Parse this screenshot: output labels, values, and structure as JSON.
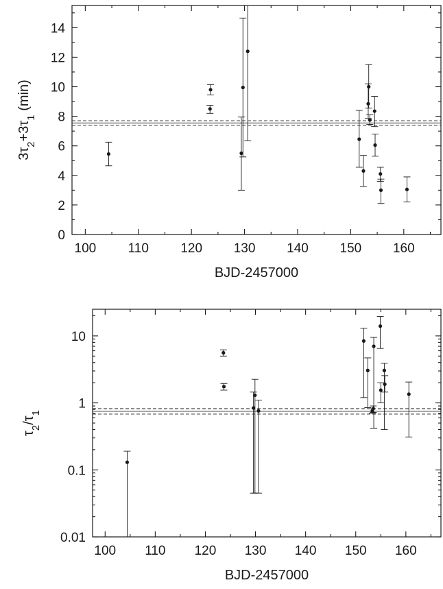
{
  "chart_data": [
    {
      "type": "scatter",
      "xlabel": "BJD-2457000",
      "ylabel_parts": [
        "3τ",
        "2",
        "+3τ",
        "1",
        " (min)"
      ],
      "xlim": [
        97.5,
        167
      ],
      "ylim": [
        0,
        15.5
      ],
      "yscale": "linear",
      "xticks": [
        100,
        110,
        120,
        130,
        140,
        150,
        160
      ],
      "yticks": [
        0,
        2,
        4,
        6,
        8,
        10,
        12,
        14
      ],
      "ytick_labels": [
        "0",
        "2",
        "4",
        "6",
        "8",
        "10",
        "12",
        "14"
      ],
      "grid": false,
      "ref_lines": [
        {
          "y": 7.55,
          "style": "solid"
        },
        {
          "y": 7.4,
          "style": "dashed"
        },
        {
          "y": 7.7,
          "style": "dashed"
        }
      ],
      "points": [
        {
          "x": 104.4,
          "y": 5.45,
          "ylo": 4.65,
          "yhi": 6.25
        },
        {
          "x": 123.5,
          "y": 8.5,
          "ylo": 8.2,
          "yhi": 8.75
        },
        {
          "x": 123.6,
          "y": 9.8,
          "ylo": 9.45,
          "yhi": 10.15
        },
        {
          "x": 129.4,
          "y": 5.5,
          "ylo": 3.0,
          "yhi": 7.95
        },
        {
          "x": 129.7,
          "y": 9.95,
          "ylo": 5.25,
          "yhi": 14.65
        },
        {
          "x": 130.6,
          "y": 12.4,
          "ylo": 6.35,
          "yhi": 15.5
        },
        {
          "x": 151.6,
          "y": 6.45,
          "ylo": 4.55,
          "yhi": 8.4
        },
        {
          "x": 152.4,
          "y": 4.3,
          "ylo": 3.25,
          "yhi": 5.35
        },
        {
          "x": 153.3,
          "y": 8.85,
          "ylo": 7.85,
          "yhi": 10.2
        },
        {
          "x": 153.4,
          "y": 10.0,
          "ylo": 8.55,
          "yhi": 11.5
        },
        {
          "x": 153.6,
          "y": 7.75,
          "ylo": 7.45,
          "yhi": 8.1
        },
        {
          "x": 154.5,
          "y": 8.35,
          "ylo": 7.3,
          "yhi": 9.35
        },
        {
          "x": 154.6,
          "y": 6.05,
          "ylo": 5.3,
          "yhi": 6.8
        },
        {
          "x": 155.6,
          "y": 4.1,
          "ylo": 3.6,
          "yhi": 4.55
        },
        {
          "x": 155.7,
          "y": 3.0,
          "ylo": 2.1,
          "yhi": 3.75
        },
        {
          "x": 160.6,
          "y": 3.05,
          "ylo": 2.2,
          "yhi": 3.9
        }
      ]
    },
    {
      "type": "scatter",
      "xlabel": "BJD-2457000",
      "ylabel_parts": [
        "τ",
        "2",
        "/τ",
        "1",
        ""
      ],
      "xlim": [
        97.5,
        167
      ],
      "ylim": [
        0.01,
        25
      ],
      "yscale": "log",
      "xticks": [
        100,
        110,
        120,
        130,
        140,
        150,
        160
      ],
      "yticks": [
        0.01,
        0.1,
        1,
        10
      ],
      "ytick_labels": [
        "0.01",
        "0.1",
        "1",
        "10"
      ],
      "grid": false,
      "ref_lines": [
        {
          "y": 0.75,
          "style": "solid"
        },
        {
          "y": 0.68,
          "style": "dashed"
        },
        {
          "y": 0.82,
          "style": "dashed"
        }
      ],
      "points": [
        {
          "x": 104.4,
          "y": 0.13,
          "ylo": 0.01,
          "yhi": 0.19
        },
        {
          "x": 123.6,
          "y": 5.6,
          "ylo": 5.0,
          "yhi": 6.2
        },
        {
          "x": 123.7,
          "y": 1.75,
          "ylo": 1.55,
          "yhi": 1.95
        },
        {
          "x": 129.6,
          "y": 0.84,
          "ylo": 0.045,
          "yhi": 1.45
        },
        {
          "x": 129.9,
          "y": 1.3,
          "ylo": 0.045,
          "yhi": 2.25
        },
        {
          "x": 130.6,
          "y": 0.76,
          "ylo": 0.045,
          "yhi": 1.1
        },
        {
          "x": 151.6,
          "y": 8.4,
          "ylo": 1.2,
          "yhi": 13.0
        },
        {
          "x": 152.4,
          "y": 3.05,
          "ylo": 0.85,
          "yhi": 4.7
        },
        {
          "x": 153.3,
          "y": 0.76,
          "ylo": 0.7,
          "yhi": 0.82
        },
        {
          "x": 153.5,
          "y": 0.82,
          "ylo": 0.72,
          "yhi": 0.9
        },
        {
          "x": 153.6,
          "y": 7.0,
          "ylo": 0.42,
          "yhi": 9.5
        },
        {
          "x": 154.9,
          "y": 14.0,
          "ylo": 6.5,
          "yhi": 19.5
        },
        {
          "x": 155.0,
          "y": 1.55,
          "ylo": 1.0,
          "yhi": 2.0
        },
        {
          "x": 155.7,
          "y": 3.05,
          "ylo": 0.4,
          "yhi": 3.9
        },
        {
          "x": 155.8,
          "y": 1.9,
          "ylo": 1.45,
          "yhi": 2.55
        },
        {
          "x": 160.6,
          "y": 1.35,
          "ylo": 0.31,
          "yhi": 2.05
        }
      ]
    }
  ]
}
